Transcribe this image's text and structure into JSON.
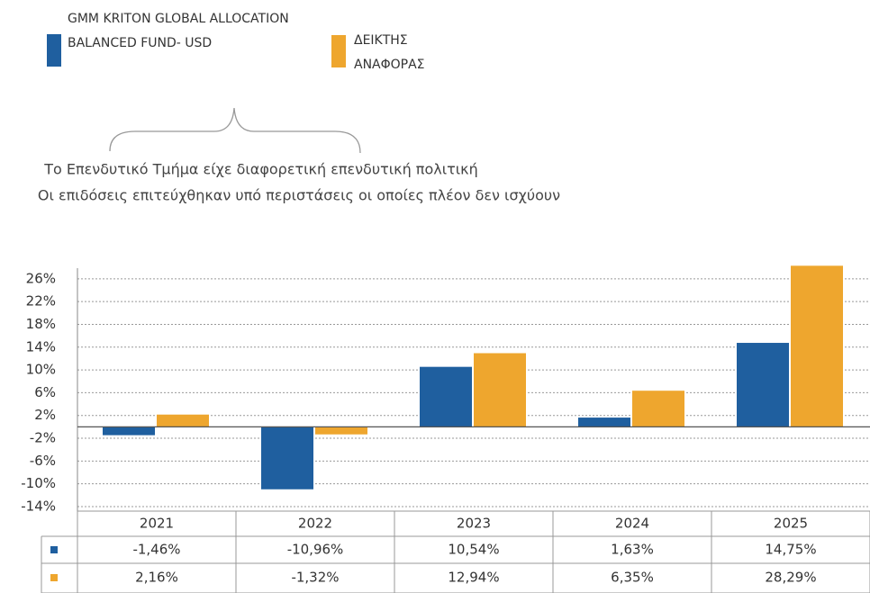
{
  "chart_data": {
    "type": "bar",
    "annotations": [
      "Το Επενδυτικό Τμήμα είχε διαφορετική επενδυτική πολιτική",
      "Οι επιδόσεις επιτεύχθηκαν υπό περιστάσεις οι οποίες πλέον δεν ισχύουν"
    ],
    "categories": [
      "2021",
      "2022",
      "2023",
      "2024",
      "2025"
    ],
    "series": [
      {
        "name": "GMM KRITON GLOBAL ALLOCATION BALANCED FUND- USD",
        "color": "#1f5f9f",
        "values": [
          -1.46,
          -10.96,
          10.54,
          1.63,
          14.75
        ],
        "value_labels": [
          "-1,46%",
          "-10,96%",
          "10,54%",
          "1,63%",
          "14,75%"
        ]
      },
      {
        "name": "ΔΕΙΚΤΗΣ ΑΝΑΦΟΡΑΣ",
        "color": "#eea62e",
        "values": [
          2.16,
          -1.32,
          12.94,
          6.35,
          28.29
        ],
        "value_labels": [
          "2,16%",
          "-1,32%",
          "12,94%",
          "6,35%",
          "28,29%"
        ]
      }
    ],
    "ylim": [
      -14,
      28.5
    ],
    "yticks": [
      {
        "value": -14,
        "label": "-14%"
      },
      {
        "value": -10,
        "label": "-10%"
      },
      {
        "value": -6,
        "label": "-6%"
      },
      {
        "value": -2,
        "label": "-2%"
      },
      {
        "value": 2,
        "label": "2%"
      },
      {
        "value": 6,
        "label": "6%"
      },
      {
        "value": 10,
        "label": "10%"
      },
      {
        "value": 14,
        "label": "14%"
      },
      {
        "value": 18,
        "label": "18%"
      },
      {
        "value": 22,
        "label": "22%"
      },
      {
        "value": 26,
        "label": "26%"
      }
    ],
    "grid": true
  }
}
